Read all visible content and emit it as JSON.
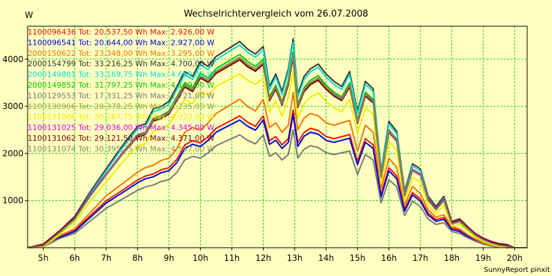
{
  "chart_data": {
    "type": "line",
    "title": "Wechselrichtervergleich vom 26.07.2008",
    "ylabel": "W",
    "xlabel": "",
    "footer": "SunnyReport pinxit",
    "ylim": [
      0,
      4700
    ],
    "xlim": [
      4.5,
      20.4
    ],
    "yticks": [
      1000,
      2000,
      3000,
      4000
    ],
    "ytick_labels": [
      "1000",
      "2000",
      "3000",
      "4000"
    ],
    "xticks": [
      5,
      6,
      7,
      8,
      9,
      10,
      11,
      12,
      13,
      14,
      15,
      16,
      17,
      18,
      19,
      20
    ],
    "xtick_labels": [
      "5h",
      "6h",
      "7h",
      "8h",
      "9h",
      "10h",
      "11h",
      "12h",
      "13h",
      "14h",
      "15h",
      "16h",
      "17h",
      "18h",
      "19h",
      "20h"
    ],
    "grid": true,
    "colors": {
      "background": "#ffffc0",
      "grid": "#22cc22",
      "axis": "#000000"
    },
    "series": [
      {
        "name": "1100096436",
        "label": "1100096436 Tot: 20.537,50 Wh Max: 2.926,00 W",
        "color": "#ee1100",
        "base": "orange",
        "scale": 0.88,
        "dy": 25
      },
      {
        "name": "1100096541",
        "label": "1100096541 Tot: 20.644,00 Wh Max: 2.927,00 W",
        "color": "#0000dd",
        "base": "orange",
        "scale": 0.86,
        "dy": 0
      },
      {
        "name": "2000150622",
        "label": "2000150622 Tot: 23.348,00 Wh Max: 3.295,00 W",
        "color": "#ee7700",
        "base": "orange",
        "scale": 1.0,
        "dy": 0
      },
      {
        "name": "2000154799",
        "label": "2000154799 Tot: 33.216,25 Wh Max: 4.700,00 W",
        "color": "#333333",
        "base": "green",
        "scale": 1.06,
        "dy": 30
      },
      {
        "name": "2000149801",
        "label": "2000149801 Tot: 33.169,75 Wh Max: 4.669,00 W",
        "color": "#00dddd",
        "base": "green",
        "scale": 1.05,
        "dy": 0
      },
      {
        "name": "2000149852",
        "label": "2000149852 Tot: 31.797,25 Wh Max: 4.149,00 W",
        "color": "#00cc00",
        "base": "green",
        "scale": 1.0,
        "dy": 0
      },
      {
        "name": "1100129553",
        "label": "1100129553 Tot: 17.331,25 Wh Max: 2.721,00 W",
        "color": "#777777",
        "base": "orange",
        "scale": 0.76,
        "dy": 0
      },
      {
        "name": "1100130966",
        "label": "1100130966 Tot: 28.378,25 Wh Max: 4.235,00 W",
        "color": "#99aa33",
        "base": "green",
        "scale": 0.97,
        "dy": 40
      },
      {
        "name": "1100131006",
        "label": "1100131006 Tot: 30.267,75 Wh Max: 4.020,00 W",
        "color": "#eeee00",
        "base": "green",
        "scale": 0.9,
        "dy": 0
      },
      {
        "name": "1100131025",
        "label": "1100131025 Tot: 29.036,00 Wh Max: 4.345,00 W",
        "color": "#dd00dd",
        "base": "green",
        "scale": 0.97,
        "dy": 60
      },
      {
        "name": "1100131062",
        "label": "1100131062 Tot: 29.121,50 Wh Max: 4.371,00 W",
        "color": "#770000",
        "base": "green",
        "scale": 0.96,
        "dy": 50
      },
      {
        "name": "1100131074",
        "label": "1100131074 Tot: 30.395,75 Wh Max: 4.567,00 W",
        "color": "#888855",
        "base": "green",
        "scale": 0.98,
        "dy": 20
      }
    ],
    "profiles": {
      "green": {
        "x": [
          4.5,
          5.0,
          5.5,
          6.0,
          6.5,
          7.0,
          7.5,
          8.0,
          8.25,
          8.5,
          8.75,
          9.0,
          9.25,
          9.5,
          9.75,
          10.0,
          10.25,
          10.5,
          10.75,
          11.0,
          11.25,
          11.5,
          11.75,
          12.0,
          12.2,
          12.4,
          12.6,
          12.8,
          12.95,
          13.1,
          13.3,
          13.5,
          13.75,
          14.0,
          14.25,
          14.5,
          14.75,
          15.0,
          15.25,
          15.5,
          15.75,
          16.0,
          16.25,
          16.5,
          16.75,
          17.0,
          17.25,
          17.5,
          17.75,
          18.0,
          18.25,
          18.5,
          18.75,
          19.0,
          19.25,
          19.5,
          19.75,
          20.0,
          20.4
        ],
        "values": [
          0,
          20,
          300,
          600,
          1100,
          1550,
          2000,
          2400,
          2450,
          2750,
          2800,
          2900,
          3200,
          3500,
          3400,
          3700,
          3600,
          3800,
          3900,
          4000,
          4100,
          3950,
          3850,
          4000,
          3200,
          3450,
          3100,
          3550,
          4150,
          3050,
          3400,
          3550,
          3650,
          3450,
          3300,
          3200,
          3500,
          2700,
          3300,
          3150,
          1500,
          2500,
          2300,
          1100,
          1650,
          1550,
          1000,
          800,
          1000,
          500,
          550,
          400,
          250,
          150,
          80,
          30,
          10,
          0,
          0
        ]
      },
      "orange": {
        "x": [
          4.5,
          5.0,
          5.5,
          6.0,
          6.5,
          7.0,
          7.5,
          8.0,
          8.25,
          8.5,
          8.75,
          9.0,
          9.25,
          9.5,
          9.75,
          10.0,
          10.25,
          10.5,
          10.75,
          11.0,
          11.25,
          11.5,
          11.75,
          12.0,
          12.2,
          12.4,
          12.6,
          12.8,
          12.95,
          13.1,
          13.3,
          13.5,
          13.75,
          14.0,
          14.25,
          14.5,
          14.75,
          15.0,
          15.25,
          15.5,
          15.75,
          16.0,
          16.25,
          16.5,
          16.75,
          17.0,
          17.25,
          17.5,
          17.75,
          18.0,
          18.25,
          18.5,
          18.75,
          19.0,
          19.25,
          19.5,
          19.75,
          20.0,
          20.4
        ],
        "values": [
          0,
          20,
          250,
          400,
          750,
          1100,
          1350,
          1600,
          1700,
          1750,
          1850,
          1900,
          2100,
          2450,
          2550,
          2500,
          2650,
          2850,
          2950,
          3050,
          3150,
          3000,
          2900,
          3150,
          2550,
          2650,
          2450,
          2600,
          3290,
          2500,
          2750,
          2850,
          2800,
          2650,
          2600,
          2650,
          2700,
          2050,
          2600,
          2450,
          1250,
          1900,
          1700,
          900,
          1300,
          1150,
          800,
          650,
          700,
          450,
          400,
          280,
          180,
          100,
          50,
          20,
          5,
          0,
          0
        ]
      }
    }
  }
}
